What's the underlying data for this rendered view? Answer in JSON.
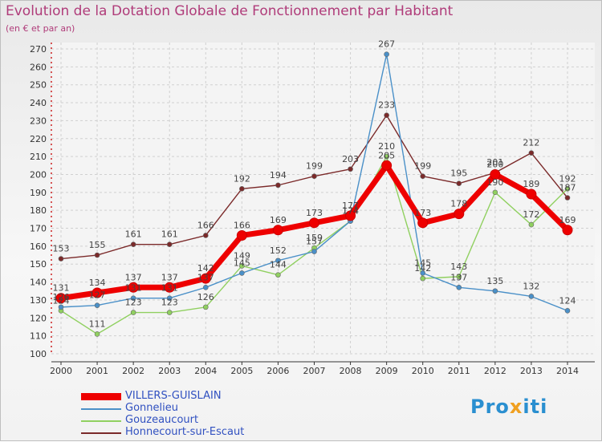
{
  "chart_data": {
    "type": "line",
    "title": "Evolution de la Dotation Globale de Fonctionnement par Habitant",
    "subtitle": "(en € et par an)",
    "categories": [
      "2000",
      "2001",
      "2002",
      "2003",
      "2004",
      "2005",
      "2006",
      "2007",
      "2008",
      "2009",
      "2010",
      "2011",
      "2012",
      "2013",
      "2014"
    ],
    "ylim": [
      100,
      270
    ],
    "yticks": [
      100,
      110,
      120,
      130,
      140,
      150,
      160,
      170,
      180,
      190,
      200,
      210,
      220,
      230,
      240,
      250,
      260,
      270
    ],
    "grid": true,
    "series": [
      {
        "name": "VILLERS-GUISLAIN",
        "color": "#ee0000",
        "values": [
          131,
          134,
          137,
          137,
          142,
          166,
          169,
          173,
          177,
          205,
          173,
          178,
          200,
          189,
          169
        ]
      },
      {
        "name": "Gonnelieu",
        "color": "#4a90c8",
        "values": [
          126,
          127,
          131,
          131,
          137,
          145,
          152,
          157,
          174,
          267,
          145,
          137,
          135,
          132,
          124
        ]
      },
      {
        "name": "Gouzeaucourt",
        "color": "#90d060",
        "values": [
          124,
          111,
          123,
          123,
          126,
          149,
          144,
          159,
          174,
          210,
          142,
          143,
          190,
          172,
          192
        ]
      },
      {
        "name": "Honnecourt-sur-Escaut",
        "color": "#7b2a2a",
        "values": [
          153,
          155,
          161,
          161,
          166,
          192,
          194,
          199,
          203,
          233,
          199,
          195,
          201,
          212,
          187
        ]
      }
    ]
  },
  "legend": {
    "villers": "VILLERS-GUISLAIN",
    "gonnelieu": "Gonnelieu",
    "gouzeaucourt": "Gouzeaucourt",
    "honnecourt": "Honnecourt-sur-Escaut"
  },
  "logo": {
    "part1": "Pro",
    "part2": "x",
    "part3": "iti"
  }
}
